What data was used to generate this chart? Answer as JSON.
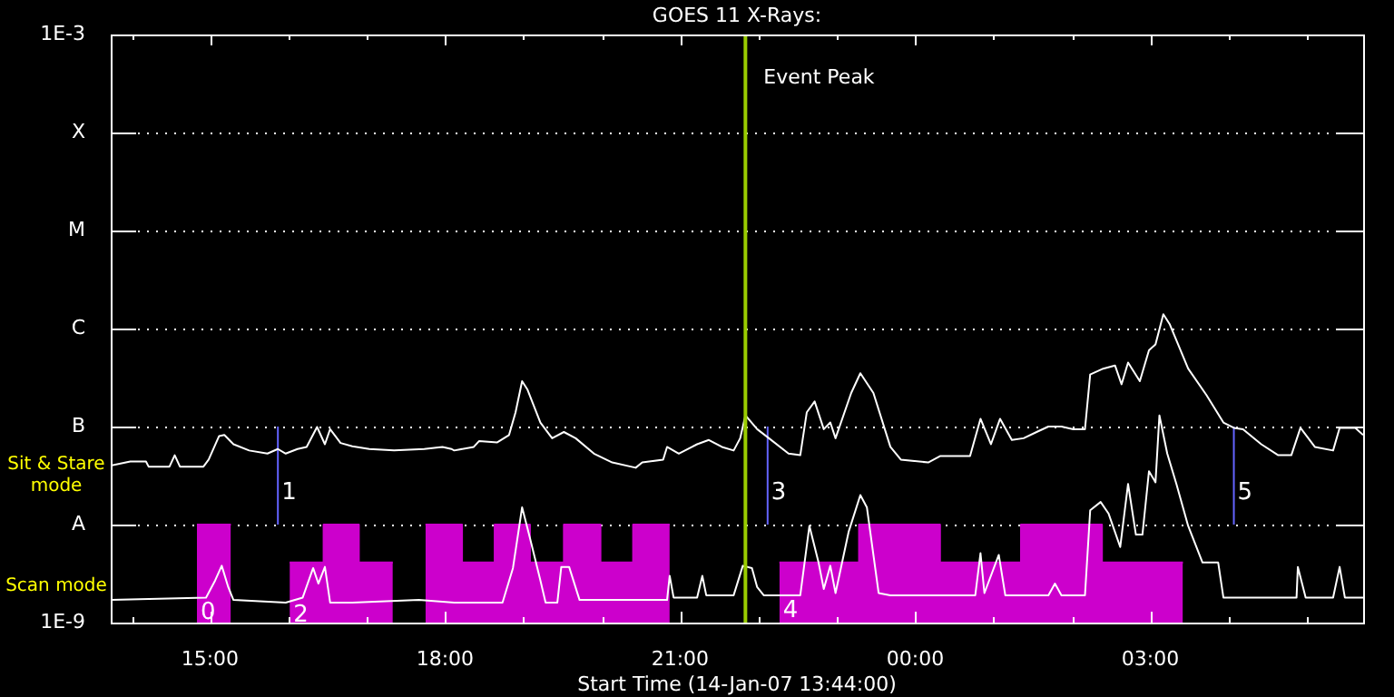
{
  "chart_data": {
    "type": "line",
    "title": "GOES 11 X-Rays:",
    "xlabel": "Start Time (14-Jan-07 13:44:00)",
    "log": "y",
    "grid": "y",
    "xlim": [
      "--01-14T13:44",
      "--01-15T05:43"
    ],
    "ylim": [
      1e-09,
      0.001
    ],
    "xticks": [
      {
        "value": "--01-14T14:00",
        "label": null
      },
      {
        "value": "--01-14T15:00",
        "label": "15:00"
      },
      {
        "value": "--01-14T16:00",
        "label": null
      },
      {
        "value": "--01-14T17:00",
        "label": null
      },
      {
        "value": "--01-14T18:00",
        "label": "18:00"
      },
      {
        "value": "--01-14T19:00",
        "label": null
      },
      {
        "value": "--01-14T20:00",
        "label": null
      },
      {
        "value": "--01-14T21:00",
        "label": "21:00"
      },
      {
        "value": "--01-14T22:00",
        "label": null
      },
      {
        "value": "--01-14T23:00",
        "label": null
      },
      {
        "value": "--01-15T00:00",
        "label": "00:00"
      },
      {
        "value": "--01-15T01:00",
        "label": null
      },
      {
        "value": "--01-15T02:00",
        "label": null
      },
      {
        "value": "--01-15T03:00",
        "label": "03:00"
      },
      {
        "value": "--01-15T04:00",
        "label": null
      },
      {
        "value": "--01-15T05:00",
        "label": null
      }
    ],
    "yticks": [
      {
        "value": 1e-09,
        "label": "1E-9"
      },
      {
        "value": 1e-08,
        "label": "A"
      },
      {
        "value": 1e-07,
        "label": "B"
      },
      {
        "value": 1e-06,
        "label": "C"
      },
      {
        "value": 1e-05,
        "label": "M"
      },
      {
        "value": 0.0001,
        "label": "X"
      },
      {
        "value": 0.001,
        "label": "1E-3"
      }
    ],
    "series": [
      {
        "type": "area",
        "color": "#cc00cc",
        "x": [
          "--01-14T14:50",
          "--01-14T15:16",
          "--01-14T15:40",
          "--01-14T16:01",
          "--01-14T16:27",
          "--01-14T16:27",
          "--01-14T16:54",
          "--01-14T16:54",
          "--01-14T17:20",
          "--01-14T17:30",
          "--01-14T17:45",
          "--01-14T18:13",
          "--01-14T18:13",
          "--01-14T18:38",
          "--01-14T18:38",
          "--01-14T19:05",
          "--01-14T19:05",
          "--01-14T19:31",
          "--01-14T19:31",
          "--01-14T19:59",
          "--01-14T19:59",
          "--01-14T20:24",
          "--01-14T20:24",
          "--01-14T20:52",
          "--01-14T21:30",
          "--01-14T22:16",
          "--01-14T23:17",
          "--01-14T23:17",
          "--01-15T00:19",
          "--01-15T00:19",
          "--01-15T01:21",
          "--01-15T01:21",
          "--01-15T02:23",
          "--01-15T02:23",
          "--01-15T03:25"
        ],
        "values": [
          1e-08,
          1e-08,
          null,
          4.1e-09,
          4.1e-09,
          1e-08,
          1e-08,
          4.1e-09,
          4.1e-09,
          null,
          1e-08,
          1e-08,
          4.1e-09,
          4.1e-09,
          1e-08,
          1e-08,
          4.1e-09,
          4.1e-09,
          1e-08,
          1e-08,
          4.1e-09,
          4.1e-09,
          1e-08,
          1e-08,
          null,
          4.1e-09,
          4.1e-09,
          1e-08,
          1e-08,
          4.1e-09,
          4.1e-09,
          1e-08,
          1e-08,
          4.1e-09,
          4.1e-09
        ]
      },
      {
        "color": "#ffffff",
        "x": [
          "--01-14T13:44",
          "--01-14T13:59",
          "--01-14T14:11",
          "--01-14T14:13",
          "--01-14T14:29",
          "--01-14T14:33",
          "--01-14T14:37",
          "--01-14T14:55",
          "--01-14T14:59",
          "--01-14T15:07",
          "--01-14T15:11",
          "--01-14T15:18",
          "--01-14T15:30",
          "--01-14T15:44",
          "--01-14T15:52",
          "--01-14T15:58",
          "--01-14T16:07",
          "--01-14T16:14",
          "--01-14T16:22",
          "--01-14T16:28",
          "--01-14T16:32",
          "--01-14T16:40",
          "--01-14T16:49",
          "--01-14T17:02",
          "--01-14T17:21",
          "--01-14T17:44",
          "--01-14T17:58",
          "--01-14T18:05",
          "--01-14T18:07",
          "--01-14T18:22",
          "--01-14T18:26",
          "--01-14T18:40",
          "--01-14T18:49",
          "--01-14T18:54",
          "--01-14T18:59",
          "--01-14T19:03",
          "--01-14T19:13",
          "--01-14T19:22",
          "--01-14T19:31",
          "--01-14T19:40",
          "--01-14T19:54",
          "--01-14T20:08",
          "--01-14T20:26",
          "--01-14T20:31",
          "--01-14T20:47",
          "--01-14T20:50",
          "--01-14T20:59",
          "--01-14T21:13",
          "--01-14T21:22",
          "--01-14T21:32",
          "--01-14T21:41",
          "--01-14T21:46",
          "--01-14T21:50",
          "--01-14T21:59",
          "--01-14T22:08",
          "--01-14T22:23",
          "--01-14T22:32",
          "--01-14T22:37",
          "--01-14T22:43",
          "--01-14T22:50",
          "--01-14T22:55",
          "--01-14T22:59",
          "--01-14T23:11",
          "--01-14T23:18",
          "--01-14T23:28",
          "--01-14T23:41",
          "--01-14T23:49",
          "--01-15T00:10",
          "--01-15T00:19",
          "--01-15T00:42",
          "--01-15T00:50",
          "--01-15T00:58",
          "--01-15T01:05",
          "--01-15T01:14",
          "--01-15T01:23",
          "--01-15T01:33",
          "--01-15T01:42",
          "--01-15T01:52",
          "--01-15T02:01",
          "--01-15T02:10",
          "--01-15T02:14",
          "--01-15T02:24",
          "--01-15T02:33",
          "--01-15T02:38",
          "--01-15T02:43",
          "--01-15T02:52",
          "--01-15T02:59",
          "--01-15T03:04",
          "--01-15T03:10",
          "--01-15T03:15",
          "--01-15T03:29",
          "--01-15T03:43",
          "--01-15T03:56",
          "--01-15T04:04",
          "--01-15T04:11",
          "--01-15T04:25",
          "--01-15T04:38",
          "--01-15T04:48",
          "--01-15T04:55",
          "--01-15T05:06",
          "--01-15T05:20",
          "--01-15T05:25",
          "--01-15T05:37",
          "--01-15T05:43"
        ],
        "values": [
          4e-08,
          4.4e-08,
          4.4e-08,
          3.9e-08,
          3.9e-08,
          5.1e-08,
          3.9e-08,
          3.9e-08,
          4.6e-08,
          8e-08,
          8.2e-08,
          6.6e-08,
          5.7e-08,
          5.3e-08,
          5.9e-08,
          5.3e-08,
          5.9e-08,
          6.2e-08,
          9.9e-08,
          6.6e-08,
          9.4e-08,
          6.8e-08,
          6.3e-08,
          5.9e-08,
          5.7e-08,
          5.9e-08,
          6.2e-08,
          5.9e-08,
          5.7e-08,
          6.2e-08,
          7.1e-08,
          6.9e-08,
          8.2e-08,
          1.4e-07,
          2.9e-07,
          2.4e-07,
          1.1e-07,
          7.6e-08,
          8.8e-08,
          7.6e-08,
          5.3e-08,
          4.3e-08,
          3.8e-08,
          4.3e-08,
          4.6e-08,
          6.2e-08,
          5.3e-08,
          6.6e-08,
          7.3e-08,
          6.2e-08,
          5.7e-08,
          7.6e-08,
          1.3e-07,
          9.4e-08,
          7.6e-08,
          5.3e-08,
          5.1e-08,
          1.4e-07,
          1.8e-07,
          9.4e-08,
          1.1e-07,
          7.6e-08,
          2.2e-07,
          3.5e-07,
          2.2e-07,
          6.2e-08,
          4.6e-08,
          4.3e-08,
          5e-08,
          5e-08,
          1.2e-07,
          6.6e-08,
          1.2e-07,
          7.3e-08,
          7.6e-08,
          8.8e-08,
          1e-07,
          1e-07,
          9.4e-08,
          9.4e-08,
          3.4e-07,
          3.9e-07,
          4.2e-07,
          2.7e-07,
          4.5e-07,
          2.9e-07,
          6e-07,
          6.9e-07,
          1.4e-06,
          1.1e-06,
          3.9e-07,
          2.1e-07,
          1.1e-07,
          9.7e-08,
          9.4e-08,
          6.6e-08,
          5.1e-08,
          5.1e-08,
          9.7e-08,
          6.2e-08,
          5.7e-08,
          9.7e-08,
          9.7e-08,
          8.2e-08
        ]
      },
      {
        "color": "#ffffff",
        "x": [
          "--01-14T13:44",
          "--01-14T14:57",
          "--01-14T15:04",
          "--01-14T15:09",
          "--01-14T15:14",
          "--01-14T15:18",
          "--01-14T15:58",
          "--01-14T16:11",
          "--01-14T16:19",
          "--01-14T16:23",
          "--01-14T16:28",
          "--01-14T16:32",
          "--01-14T16:49",
          "--01-14T17:40",
          "--01-14T18:07",
          "--01-14T18:44",
          "--01-14T18:52",
          "--01-14T18:59",
          "--01-14T19:05",
          "--01-14T19:13",
          "--01-14T19:17",
          "--01-14T19:26",
          "--01-14T19:29",
          "--01-14T19:35",
          "--01-14T19:43",
          "--01-14T20:50",
          "--01-14T20:52",
          "--01-14T20:55",
          "--01-14T21:13",
          "--01-14T21:17",
          "--01-14T21:20",
          "--01-14T21:41",
          "--01-14T21:48",
          "--01-14T21:55",
          "--01-14T21:59",
          "--01-14T22:04",
          "--01-14T22:32",
          "--01-14T22:39",
          "--01-14T22:46",
          "--01-14T22:50",
          "--01-14T22:55",
          "--01-14T22:59",
          "--01-14T23:09",
          "--01-14T23:18",
          "--01-14T23:23",
          "--01-14T23:32",
          "--01-14T23:41",
          "--01-15T00:10",
          "--01-15T00:46",
          "--01-15T00:50",
          "--01-15T00:53",
          "--01-15T01:04",
          "--01-15T01:09",
          "--01-15T01:42",
          "--01-15T01:47",
          "--01-15T01:52",
          "--01-15T02:10",
          "--01-15T02:14",
          "--01-15T02:22",
          "--01-15T02:28",
          "--01-15T02:37",
          "--01-15T02:43",
          "--01-15T02:49",
          "--01-15T02:54",
          "--01-15T02:59",
          "--01-15T03:04",
          "--01-15T03:07",
          "--01-15T03:13",
          "--01-15T03:20",
          "--01-15T03:29",
          "--01-15T03:40",
          "--01-15T03:52",
          "--01-15T03:56",
          "--01-15T04:34",
          "--01-15T04:52",
          "--01-15T04:53",
          "--01-15T04:59",
          "--01-15T05:20",
          "--01-15T05:25",
          "--01-15T05:29",
          "--01-15T05:43"
        ],
        "values": [
          1.7e-09,
          1.8e-09,
          2.7e-09,
          3.8e-09,
          2.3e-09,
          1.7e-09,
          1.6e-09,
          1.8e-09,
          3.6e-09,
          2.5e-09,
          3.7e-09,
          1.6e-09,
          1.6e-09,
          1.7e-09,
          1.6e-09,
          1.6e-09,
          3.6e-09,
          1.5e-08,
          7.3e-09,
          2.7e-09,
          1.6e-09,
          1.6e-09,
          3.7e-09,
          3.7e-09,
          1.7e-09,
          1.7e-09,
          3e-09,
          1.8e-09,
          1.8e-09,
          3e-09,
          1.9e-09,
          1.9e-09,
          3.8e-09,
          3.6e-09,
          2.3e-09,
          1.9e-09,
          1.9e-09,
          9.7e-09,
          4.1e-09,
          2.2e-09,
          3.8e-09,
          2e-09,
          8.4e-09,
          2e-08,
          1.5e-08,
          2e-09,
          1.9e-09,
          1.9e-09,
          1.9e-09,
          5.1e-09,
          2e-09,
          4.9e-09,
          1.9e-09,
          1.9e-09,
          2.5e-09,
          1.9e-09,
          1.9e-09,
          1.4e-08,
          1.7e-08,
          1.3e-08,
          5.9e-09,
          2.6e-08,
          7.9e-09,
          7.9e-09,
          3.5e-08,
          2.7e-08,
          1.3e-07,
          5.3e-08,
          2.6e-08,
          9.7e-09,
          4.1e-09,
          4.1e-09,
          1.8e-09,
          1.8e-09,
          1.8e-09,
          3.7e-09,
          1.8e-09,
          1.8e-09,
          3.7e-09,
          1.8e-09,
          1.8e-09
        ]
      },
      {
        "color": "#6464ff",
        "x": [
          "--01-14T15:52",
          "--01-14T15:52"
        ],
        "values": [
          1e-08,
          1e-07
        ]
      },
      {
        "color": "#6464ff",
        "x": [
          "--01-14T22:07",
          "--01-14T22:07"
        ],
        "values": [
          1e-08,
          1e-07
        ]
      },
      {
        "color": "#6464ff",
        "x": [
          "--01-15T04:04",
          "--01-15T04:04"
        ],
        "values": [
          1e-08,
          1e-07
        ]
      }
    ],
    "ref_lines": [
      {
        "axis": "x",
        "value": "--01-14T21:50",
        "label": "Event Peak",
        "color": "#99cc00"
      }
    ],
    "annotations": [
      "Sit & Stare mode",
      "Scan mode",
      {
        "text": "0",
        "x": "--01-14T14:50",
        "y": 1.8e-09
      },
      {
        "text": "1",
        "x": "--01-14T15:52",
        "y": 3e-08
      },
      {
        "text": "2",
        "x": "--01-14T16:01",
        "y": 1.7e-09
      },
      {
        "text": "3",
        "x": "--01-14T22:07",
        "y": 3e-08
      },
      {
        "text": "4",
        "x": "--01-14T22:16",
        "y": 1.9e-09
      },
      {
        "text": "5",
        "x": "--01-15T04:04",
        "y": 3e-08
      }
    ]
  }
}
